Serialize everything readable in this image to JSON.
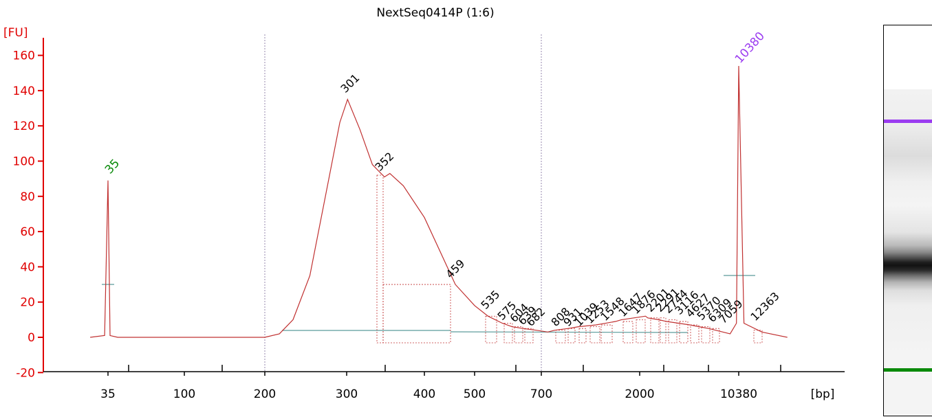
{
  "colors": {
    "axis": "#e00000",
    "trace": "#c03030",
    "baseline": "#5a9a9a",
    "marker_lower": "#0a8a0a",
    "marker_upper": "#9b3cf0",
    "peak_label": "#000000"
  },
  "chart_data": {
    "type": "line",
    "title": "NextSeq0414P (1:6)",
    "ylabel": "[FU]",
    "xlabel": "[bp]",
    "ylim": [
      -20,
      165
    ],
    "x_scale": "size ladder (non-linear, bp)",
    "grid": false,
    "yticks": [
      -20,
      0,
      20,
      40,
      60,
      80,
      100,
      120,
      140,
      160
    ],
    "xtick_labels": [
      "35",
      "100",
      "200",
      "300",
      "400",
      "500",
      "700",
      "2000",
      "10380"
    ],
    "x_unit": "[bp]",
    "markers": [
      {
        "label": "35",
        "size_bp": 35,
        "height_fu": 89,
        "kind": "lower marker"
      },
      {
        "label": "10380",
        "size_bp": 10380,
        "height_fu": 154,
        "kind": "upper marker"
      }
    ],
    "peak_labels": [
      "301",
      "352",
      "459",
      "535",
      "575",
      "604",
      "639",
      "682",
      "808",
      "931",
      "1039",
      "1253",
      "1548",
      "1647",
      "1876",
      "2201",
      "2291",
      "2744",
      "3116",
      "4627",
      "5370",
      "6309",
      "7059",
      "12363"
    ],
    "series": [
      {
        "values_described": "electropherogram trace",
        "points_bp_fu": [
          [
            30,
            0
          ],
          [
            34,
            1
          ],
          [
            35,
            89
          ],
          [
            36,
            1
          ],
          [
            40,
            0
          ],
          [
            100,
            0
          ],
          [
            200,
            0
          ],
          [
            215,
            2
          ],
          [
            230,
            10
          ],
          [
            250,
            35
          ],
          [
            270,
            80
          ],
          [
            290,
            122
          ],
          [
            301,
            135
          ],
          [
            315,
            118
          ],
          [
            330,
            98
          ],
          [
            345,
            91
          ],
          [
            352,
            93
          ],
          [
            370,
            86
          ],
          [
            400,
            68
          ],
          [
            430,
            48
          ],
          [
            459,
            30
          ],
          [
            500,
            18
          ],
          [
            535,
            12
          ],
          [
            575,
            8
          ],
          [
            604,
            6
          ],
          [
            639,
            5
          ],
          [
            682,
            4
          ],
          [
            750,
            3
          ],
          [
            808,
            4
          ],
          [
            931,
            5
          ],
          [
            1039,
            6
          ],
          [
            1253,
            7
          ],
          [
            1548,
            9
          ],
          [
            1647,
            10
          ],
          [
            1876,
            11
          ],
          [
            2201,
            12
          ],
          [
            2291,
            11
          ],
          [
            2744,
            10
          ],
          [
            3116,
            9
          ],
          [
            4627,
            7
          ],
          [
            5370,
            6
          ],
          [
            6309,
            5
          ],
          [
            7059,
            4
          ],
          [
            9000,
            2
          ],
          [
            10000,
            8
          ],
          [
            10380,
            154
          ],
          [
            10800,
            8
          ],
          [
            12363,
            3
          ],
          [
            15000,
            0
          ]
        ]
      }
    ]
  },
  "gel": {
    "lane_label": ""
  }
}
